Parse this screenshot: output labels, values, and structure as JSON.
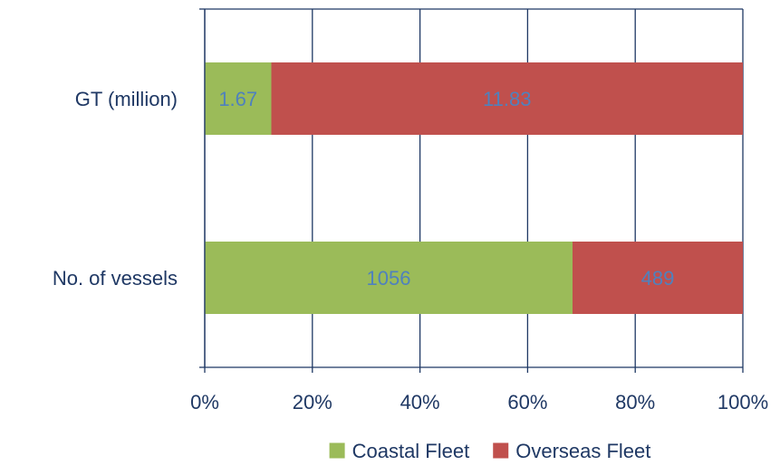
{
  "chart_data": {
    "type": "bar",
    "orientation": "horizontal",
    "stacking": "percent",
    "categories": [
      "GT (million)",
      "No. of vessels"
    ],
    "series": [
      {
        "name": "Coastal Fleet",
        "values": [
          1.67,
          1056
        ],
        "color": "#9bbb59"
      },
      {
        "name": "Overseas Fleet",
        "values": [
          11.83,
          489
        ],
        "color": "#c0504d"
      }
    ],
    "xlim": [
      0,
      100
    ],
    "x_ticks": [
      "0%",
      "20%",
      "40%",
      "60%",
      "80%",
      "100%"
    ],
    "grid": true,
    "legend": "bottom",
    "data_label_color": "#4f81bd",
    "axis_color": "#1f3864"
  }
}
